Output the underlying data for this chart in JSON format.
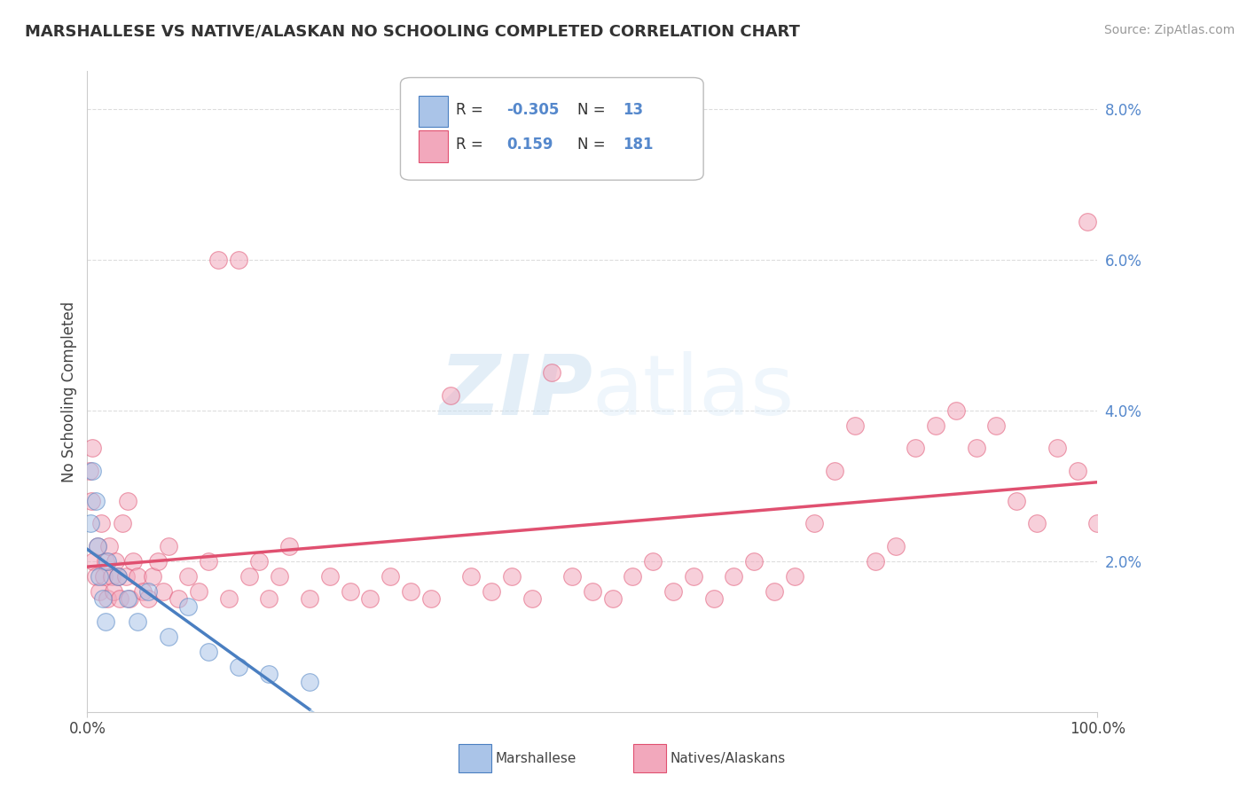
{
  "title": "MARSHALLESE VS NATIVE/ALASKAN NO SCHOOLING COMPLETED CORRELATION CHART",
  "source": "Source: ZipAtlas.com",
  "ylabel": "No Schooling Completed",
  "xlim": [
    0,
    100
  ],
  "ylim": [
    0,
    8.5
  ],
  "ytick_vals": [
    2,
    4,
    6,
    8
  ],
  "ytick_labels": [
    "2.0%",
    "4.0%",
    "6.0%",
    "8.0%"
  ],
  "xtick_vals": [
    0,
    100
  ],
  "xtick_labels": [
    "0.0%",
    "100.0%"
  ],
  "background_color": "#ffffff",
  "grid_color": "#dddddd",
  "series1_color": "#aac4e8",
  "series2_color": "#f2a8bc",
  "line1_color": "#4a7fc1",
  "line2_color": "#e05070",
  "line1_dash_color": "#90b8e0",
  "watermark_color": "#ddeeff",
  "tick_label_color": "#5588cc",
  "marshallese_x": [
    0.3,
    0.5,
    0.8,
    1.0,
    1.2,
    1.5,
    1.8,
    2.0,
    3.0,
    4.0,
    5.0,
    6.0,
    8.0,
    10.0,
    12.0,
    15.0,
    18.0,
    22.0
  ],
  "marshallese_y": [
    2.5,
    3.2,
    2.8,
    2.2,
    1.8,
    1.5,
    1.2,
    2.0,
    1.8,
    1.5,
    1.2,
    1.6,
    1.0,
    1.4,
    0.8,
    0.6,
    0.5,
    0.4
  ],
  "natives_x": [
    0.2,
    0.4,
    0.5,
    0.6,
    0.8,
    1.0,
    1.2,
    1.4,
    1.6,
    1.8,
    2.0,
    2.2,
    2.4,
    2.6,
    2.8,
    3.0,
    3.2,
    3.5,
    3.8,
    4.0,
    4.2,
    4.5,
    5.0,
    5.5,
    6.0,
    6.5,
    7.0,
    7.5,
    8.0,
    9.0,
    10.0,
    11.0,
    12.0,
    13.0,
    14.0,
    15.0,
    16.0,
    17.0,
    18.0,
    19.0,
    20.0,
    22.0,
    24.0,
    26.0,
    28.0,
    30.0,
    32.0,
    34.0,
    36.0,
    38.0,
    40.0,
    42.0,
    44.0,
    46.0,
    48.0,
    50.0,
    52.0,
    54.0,
    56.0,
    58.0,
    60.0,
    62.0,
    64.0,
    66.0,
    68.0,
    70.0,
    72.0,
    74.0,
    76.0,
    78.0,
    80.0,
    82.0,
    84.0,
    86.0,
    88.0,
    90.0,
    92.0,
    94.0,
    96.0,
    98.0,
    99.0,
    100.0
  ],
  "natives_y": [
    3.2,
    2.8,
    3.5,
    2.0,
    1.8,
    2.2,
    1.6,
    2.5,
    1.8,
    2.0,
    1.5,
    2.2,
    1.8,
    1.6,
    2.0,
    1.8,
    1.5,
    2.5,
    1.8,
    2.8,
    1.5,
    2.0,
    1.8,
    1.6,
    1.5,
    1.8,
    2.0,
    1.6,
    2.2,
    1.5,
    1.8,
    1.6,
    2.0,
    6.0,
    1.5,
    6.0,
    1.8,
    2.0,
    1.5,
    1.8,
    2.2,
    1.5,
    1.8,
    1.6,
    1.5,
    1.8,
    1.6,
    1.5,
    4.2,
    1.8,
    1.6,
    1.8,
    1.5,
    4.5,
    1.8,
    1.6,
    1.5,
    1.8,
    2.0,
    1.6,
    1.8,
    1.5,
    1.8,
    2.0,
    1.6,
    1.8,
    2.5,
    3.2,
    3.8,
    2.0,
    2.2,
    3.5,
    3.8,
    4.0,
    3.5,
    3.8,
    2.8,
    2.5,
    3.5,
    3.2,
    6.5,
    2.5
  ]
}
